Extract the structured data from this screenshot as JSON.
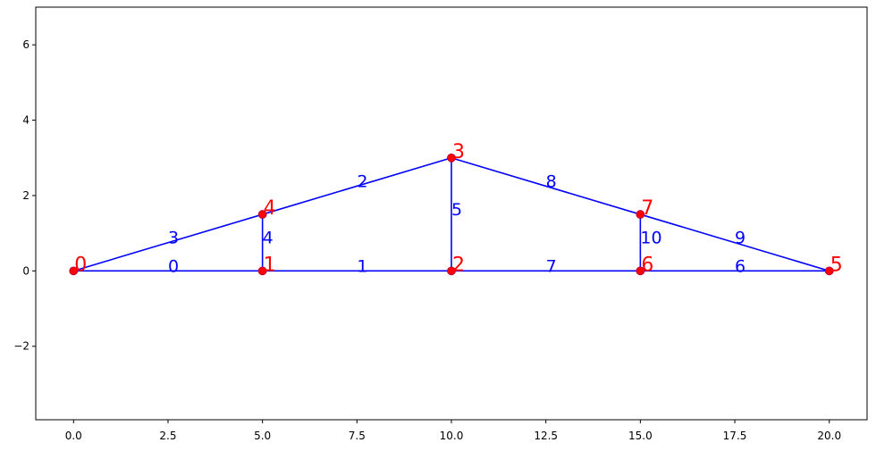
{
  "chart_data": {
    "type": "truss",
    "nodes": {
      "x": [
        0,
        5,
        10,
        10,
        5,
        20,
        15,
        15
      ],
      "y": [
        0,
        0,
        0,
        3,
        1.5,
        0,
        0,
        1.5
      ],
      "labels": [
        "0",
        "1",
        "2",
        "3",
        "4",
        "5",
        "6",
        "7"
      ],
      "color": "#ff0000"
    },
    "elements": {
      "from": [
        0,
        1,
        4,
        0,
        1,
        2,
        6,
        2,
        3,
        7,
        6
      ],
      "to": [
        1,
        2,
        3,
        4,
        4,
        3,
        5,
        6,
        7,
        5,
        7
      ],
      "labels": [
        "0",
        "1",
        "2",
        "3",
        "4",
        "5",
        "6",
        "7",
        "8",
        "9",
        "10"
      ],
      "color": "#0000ff"
    },
    "xlim": [
      -1,
      21
    ],
    "ylim": [
      -3.95,
      7.0
    ],
    "xticks": [
      {
        "value": 0,
        "label": "0.0"
      },
      {
        "value": 2.5,
        "label": "2.5"
      },
      {
        "value": 5,
        "label": "5.0"
      },
      {
        "value": 7.5,
        "label": "7.5"
      },
      {
        "value": 10,
        "label": "10.0"
      },
      {
        "value": 12.5,
        "label": "12.5"
      },
      {
        "value": 15,
        "label": "15.0"
      },
      {
        "value": 17.5,
        "label": "17.5"
      },
      {
        "value": 20,
        "label": "20.0"
      }
    ],
    "yticks": [
      {
        "value": -2,
        "label": "−2"
      },
      0,
      2,
      4,
      6
    ]
  }
}
